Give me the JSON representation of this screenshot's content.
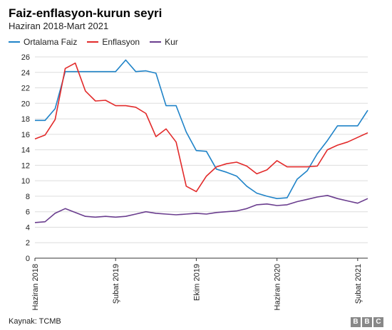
{
  "chart_data": {
    "type": "line",
    "title": "Faiz-enflasyon-kurun seyri",
    "subtitle": "Haziran 2018-Mart 2021",
    "xlabel": "",
    "ylabel": "",
    "ylim": [
      0,
      26
    ],
    "yticks": [
      0,
      2,
      4,
      6,
      8,
      10,
      12,
      14,
      16,
      18,
      20,
      22,
      24,
      26
    ],
    "xtick_labels": [
      {
        "index": 0,
        "label": "Haziran 2018"
      },
      {
        "index": 8,
        "label": "Şubat 2019"
      },
      {
        "index": 16,
        "label": "Ekim 2019"
      },
      {
        "index": 24,
        "label": "Haziran 2020"
      },
      {
        "index": 32,
        "label": "Şubat 2021"
      }
    ],
    "x": [
      "2018-06",
      "2018-07",
      "2018-08",
      "2018-09",
      "2018-10",
      "2018-11",
      "2018-12",
      "2019-01",
      "2019-02",
      "2019-03",
      "2019-04",
      "2019-05",
      "2019-06",
      "2019-07",
      "2019-08",
      "2019-09",
      "2019-10",
      "2019-11",
      "2019-12",
      "2020-01",
      "2020-02",
      "2020-03",
      "2020-04",
      "2020-05",
      "2020-06",
      "2020-07",
      "2020-08",
      "2020-09",
      "2020-10",
      "2020-11",
      "2020-12",
      "2021-01",
      "2021-02",
      "2021-03"
    ],
    "grid": true,
    "legend_position": "top-left",
    "series": [
      {
        "name": "Ortalama Faiz",
        "color": "#1f83c8",
        "values": [
          17.8,
          17.8,
          19.3,
          24.1,
          24.1,
          24.1,
          24.1,
          24.1,
          24.1,
          25.6,
          24.1,
          24.2,
          23.9,
          19.7,
          19.7,
          16.3,
          13.9,
          13.8,
          11.5,
          11.1,
          10.6,
          9.3,
          8.4,
          8.0,
          7.7,
          7.8,
          10.2,
          11.3,
          13.5,
          15.2,
          17.1,
          17.1,
          17.1,
          19.1
        ]
      },
      {
        "name": "Enflasyon",
        "color": "#e22a2a",
        "values": [
          15.4,
          15.9,
          17.9,
          24.5,
          25.2,
          21.6,
          20.3,
          20.4,
          19.7,
          19.7,
          19.5,
          18.7,
          15.7,
          16.7,
          15.0,
          9.3,
          8.6,
          10.6,
          11.8,
          12.2,
          12.4,
          11.9,
          10.9,
          11.4,
          12.6,
          11.8,
          11.8,
          11.8,
          11.9,
          14.0,
          14.6,
          15.0,
          15.6,
          16.2
        ]
      },
      {
        "name": "Kur",
        "color": "#6a3d8e",
        "values": [
          4.6,
          4.7,
          5.8,
          6.4,
          5.9,
          5.4,
          5.3,
          5.4,
          5.3,
          5.4,
          5.7,
          6.0,
          5.8,
          5.7,
          5.6,
          5.7,
          5.8,
          5.7,
          5.9,
          6.0,
          6.1,
          6.4,
          6.9,
          7.0,
          6.8,
          6.9,
          7.3,
          7.6,
          7.9,
          8.1,
          7.7,
          7.4,
          7.1,
          7.7
        ]
      }
    ]
  },
  "footer": {
    "source": "Kaynak: TCMB",
    "logo_letters": [
      "B",
      "B",
      "C"
    ]
  }
}
